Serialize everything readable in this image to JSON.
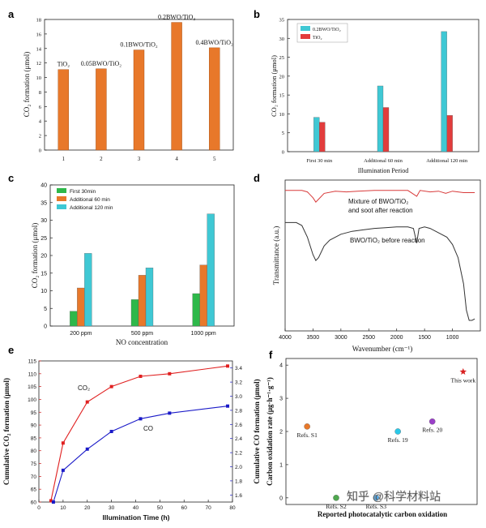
{
  "chart_data": [
    {
      "id": "a",
      "type": "bar",
      "panel_label": "a",
      "categories": [
        "1",
        "2",
        "3",
        "4",
        "5"
      ],
      "values": [
        11.1,
        11.2,
        13.8,
        17.6,
        14.1
      ],
      "bar_labels": [
        "TiO₂",
        "0.05BWO/TiO₂",
        "0.1BWO/TiO₂",
        "0.2BWO/TiO₂",
        "0.4BWO/TiO₂"
      ],
      "ylabel": "CO₂ formation (μmol)",
      "xlabel": "",
      "ylim": [
        0,
        18
      ],
      "yticks": [
        0,
        2,
        4,
        6,
        8,
        10,
        12,
        14,
        16,
        18
      ],
      "colors": {
        "bar": "#e8782a"
      }
    },
    {
      "id": "b",
      "type": "bar",
      "panel_label": "b",
      "categories": [
        "First 30 min",
        "Additional 60 min",
        "Additional 120 min"
      ],
      "series": [
        {
          "name": "0.2BWO/TiO₂",
          "values": [
            9.1,
            17.4,
            31.8
          ],
          "color": "#3fc8d4"
        },
        {
          "name": "TiO₂",
          "values": [
            7.8,
            11.7,
            9.6
          ],
          "color": "#e23c3c"
        }
      ],
      "xlabel": "Illumination Period",
      "ylabel": "CO₂ formation (μmol)",
      "ylim": [
        0,
        35
      ],
      "yticks": [
        0,
        5,
        10,
        15,
        20,
        25,
        30,
        35
      ]
    },
    {
      "id": "c",
      "type": "bar",
      "panel_label": "c",
      "categories": [
        "200 ppm",
        "500 ppm",
        "1000 ppm"
      ],
      "series": [
        {
          "name": "First 30min",
          "values": [
            4.2,
            7.5,
            9.2
          ],
          "color": "#2eb84a"
        },
        {
          "name": "Additional 60 min",
          "values": [
            10.8,
            14.4,
            17.3
          ],
          "color": "#e8782a"
        },
        {
          "name": "Additional 120 min",
          "values": [
            20.6,
            16.5,
            31.8
          ],
          "color": "#3fc8d4"
        }
      ],
      "xlabel": "NO concentration",
      "ylabel": "CO₂ formation (μmol)",
      "ylim": [
        0,
        40
      ],
      "yticks": [
        0,
        5,
        10,
        15,
        20,
        25,
        30,
        35,
        40
      ]
    },
    {
      "id": "d",
      "type": "line",
      "panel_label": "d",
      "xlabel": "Wavenumber (cm⁻¹)",
      "ylabel": "Transmittance (a.u.)",
      "xlim": [
        4000,
        500
      ],
      "xticks": [
        4000,
        3500,
        3000,
        2500,
        2000,
        1500,
        1000
      ],
      "series": [
        {
          "name": "Mixture of BWO/TiO₂ and soot after reaction",
          "label_lines": [
            "Mixture of BWO/TiO₂",
            "and soot after reaction"
          ],
          "color": "#d83a3a",
          "x": [
            4000,
            3700,
            3600,
            3500,
            3450,
            3400,
            3300,
            3100,
            2900,
            2700,
            2400,
            2000,
            1800,
            1640,
            1610,
            1580,
            1400,
            1250,
            1120,
            1000,
            900,
            800,
            700,
            600
          ],
          "y": [
            0.94,
            0.94,
            0.93,
            0.89,
            0.86,
            0.88,
            0.92,
            0.935,
            0.93,
            0.935,
            0.94,
            0.94,
            0.94,
            0.9,
            0.92,
            0.94,
            0.93,
            0.935,
            0.92,
            0.935,
            0.93,
            0.925,
            0.925,
            0.925
          ]
        },
        {
          "name": "BWO/TiO₂ before reaction",
          "label_lines": [
            "BWO/TiO₂ before reaction"
          ],
          "color": "#333333",
          "x": [
            4000,
            3800,
            3700,
            3600,
            3500,
            3450,
            3400,
            3300,
            3200,
            3000,
            2800,
            2600,
            2400,
            2200,
            2000,
            1800,
            1700,
            1640,
            1600,
            1500,
            1400,
            1300,
            1100,
            1000,
            900,
            800,
            750,
            700,
            650,
            600
          ],
          "y": [
            0.72,
            0.72,
            0.7,
            0.62,
            0.5,
            0.46,
            0.48,
            0.56,
            0.6,
            0.64,
            0.66,
            0.67,
            0.68,
            0.685,
            0.69,
            0.69,
            0.68,
            0.58,
            0.68,
            0.69,
            0.68,
            0.66,
            0.62,
            0.57,
            0.48,
            0.3,
            0.12,
            0.05,
            0.05,
            0.06
          ]
        }
      ]
    },
    {
      "id": "e",
      "type": "line",
      "panel_label": "e",
      "xlabel": "Illumination Time (h)",
      "ylabel_left": "Cumulative CO₂ formation (μmol)",
      "ylabel_right": "Cumulative CO formation (μmol)",
      "xlim": [
        0,
        80
      ],
      "xticks": [
        0,
        10,
        20,
        30,
        40,
        50,
        60,
        70,
        80
      ],
      "ylim_left": [
        60,
        115
      ],
      "yticks_left": [
        60,
        65,
        70,
        75,
        80,
        85,
        90,
        95,
        100,
        105,
        110,
        115
      ],
      "ylim_right": [
        1.5,
        3.5
      ],
      "yticks_right": [
        1.6,
        1.8,
        2.0,
        2.2,
        2.4,
        2.6,
        2.8,
        3.0,
        3.2,
        3.4
      ],
      "series": [
        {
          "name": "CO₂",
          "axis": "left",
          "color": "#e02020",
          "x": [
            5,
            10,
            20,
            30,
            42,
            54,
            78
          ],
          "y": [
            60.5,
            83,
            99,
            105,
            109,
            110,
            113
          ]
        },
        {
          "name": "CO",
          "axis": "right",
          "color": "#1a1ac8",
          "x": [
            6,
            10,
            20,
            30,
            42,
            54,
            78
          ],
          "y": [
            1.5,
            1.95,
            2.25,
            2.5,
            2.68,
            2.76,
            2.86
          ]
        }
      ]
    },
    {
      "id": "f",
      "type": "scatter",
      "panel_label": "f",
      "xlabel": "Reported photocatalytic carbon oxidation",
      "ylabel": "Carbon oxidation rate (μg·h⁻¹·g⁻¹)",
      "ylim": [
        -0.2,
        4.2
      ],
      "yticks": [
        0,
        1,
        2,
        3,
        4
      ],
      "xlim": [
        0,
        10
      ],
      "points": [
        {
          "label": "Refs. S1",
          "x": 0.9,
          "y": 2.15,
          "color": "#e8782a"
        },
        {
          "label": "Refs. S2",
          "x": 2.5,
          "y": 0.0,
          "color": "#4fa84f"
        },
        {
          "label": "Refs. S3",
          "x": 4.7,
          "y": 0.0,
          "color": "#4fa8e8"
        },
        {
          "label": "Refs. 19",
          "x": 5.9,
          "y": 2.0,
          "color": "#2ac8e8"
        },
        {
          "label": "Refs. 20",
          "x": 7.8,
          "y": 2.3,
          "color": "#9a3fc8"
        },
        {
          "label": "This work",
          "x": 9.5,
          "y": 3.8,
          "color": "#d82020",
          "marker": "star"
        }
      ]
    }
  ],
  "watermark": "知乎 @科学材料站"
}
